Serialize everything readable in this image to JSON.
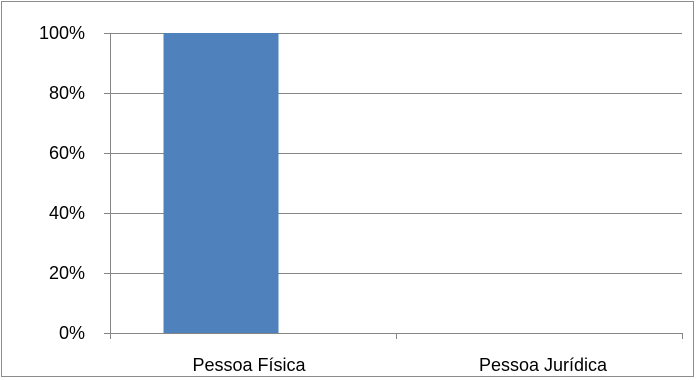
{
  "chart_data": {
    "type": "bar",
    "categories": [
      "Pessoa Física",
      "Pessoa Jurídica"
    ],
    "values": [
      100,
      0
    ],
    "ylim": [
      0,
      100
    ],
    "ytick_values": [
      0,
      20,
      40,
      60,
      80,
      100
    ],
    "ytick_labels": [
      "0%",
      "20%",
      "40%",
      "60%",
      "80%",
      "100%"
    ],
    "title": "",
    "xlabel": "",
    "ylabel": "",
    "grid": true,
    "legend": "none",
    "bar_color": "#4f81bd",
    "gridline_color": "#868686"
  }
}
